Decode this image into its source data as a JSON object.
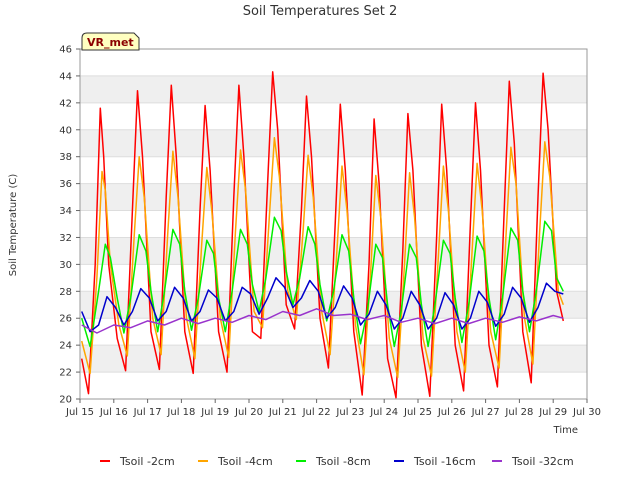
{
  "chart_data": {
    "type": "line",
    "title": "Soil Temperatures Set 2",
    "xlabel": "Time",
    "ylabel": "Soil Temperature (C)",
    "badge": "VR_met",
    "ylim": [
      20,
      46
    ],
    "yticks": [
      20,
      22,
      24,
      26,
      28,
      30,
      32,
      34,
      36,
      38,
      40,
      42,
      44,
      46
    ],
    "xlim": [
      15,
      30
    ],
    "xticks": [
      15,
      16,
      17,
      18,
      19,
      20,
      21,
      22,
      23,
      24,
      25,
      26,
      27,
      28,
      29,
      30
    ],
    "xtick_labels": [
      "Jul 15",
      "Jul 16",
      "Jul 17",
      "Jul 18",
      "Jul 19",
      "Jul 20",
      "Jul 21",
      "Jul 22",
      "Jul 23",
      "Jul 24",
      "Jul 25",
      "Jul 26",
      "Jul 27",
      "Jul 28",
      "Jul 29",
      "Jul 30"
    ],
    "grid": true,
    "legend_position": "bottom",
    "series": [
      {
        "name": "Tsoil -2cm",
        "color": "#ff0000",
        "x": [
          15.05,
          15.25,
          15.45,
          15.6,
          15.7,
          15.85,
          16.1,
          16.35,
          16.55,
          16.7,
          16.85,
          17.1,
          17.35,
          17.55,
          17.7,
          17.85,
          18.1,
          18.35,
          18.55,
          18.7,
          18.85,
          19.1,
          19.35,
          19.55,
          19.7,
          19.85,
          20.1,
          20.35,
          20.55,
          20.7,
          20.85,
          21.1,
          21.35,
          21.55,
          21.7,
          21.85,
          22.1,
          22.35,
          22.55,
          22.7,
          22.85,
          23.1,
          23.35,
          23.55,
          23.7,
          23.85,
          24.1,
          24.35,
          24.55,
          24.7,
          24.85,
          25.1,
          25.35,
          25.55,
          25.7,
          25.85,
          26.1,
          26.35,
          26.55,
          26.7,
          26.85,
          27.1,
          27.35,
          27.55,
          27.7,
          27.85,
          28.1,
          28.35,
          28.55,
          28.7,
          28.85,
          29.1,
          29.3
        ],
        "y": [
          23.0,
          20.4,
          30.0,
          41.6,
          38.0,
          30.0,
          24.5,
          22.1,
          34.0,
          42.9,
          38.0,
          25.0,
          22.2,
          35.0,
          43.3,
          38.0,
          25.0,
          21.9,
          34.0,
          41.8,
          37.0,
          25.0,
          22.0,
          35.0,
          43.3,
          38.0,
          25.0,
          24.5,
          36.0,
          44.3,
          40.0,
          27.0,
          25.2,
          34.0,
          42.5,
          38.0,
          26.0,
          22.3,
          33.0,
          41.9,
          37.0,
          25.0,
          20.3,
          30.0,
          40.8,
          36.0,
          23.0,
          20.1,
          31.0,
          41.2,
          37.0,
          24.0,
          20.2,
          32.0,
          41.9,
          37.0,
          24.0,
          20.6,
          33.0,
          42.0,
          37.0,
          24.0,
          20.9,
          34.0,
          43.6,
          39.0,
          25.0,
          21.2,
          35.0,
          44.2,
          40.0,
          28.0,
          25.8
        ]
      },
      {
        "name": "Tsoil -4cm",
        "color": "#ffa500",
        "x": [
          15.05,
          15.3,
          15.5,
          15.65,
          15.75,
          15.9,
          16.15,
          16.4,
          16.6,
          16.75,
          16.9,
          17.15,
          17.4,
          17.6,
          17.75,
          17.9,
          18.15,
          18.4,
          18.6,
          18.75,
          18.9,
          19.15,
          19.4,
          19.6,
          19.75,
          19.9,
          20.15,
          20.4,
          20.6,
          20.75,
          20.9,
          21.15,
          21.4,
          21.6,
          21.75,
          21.9,
          22.15,
          22.4,
          22.6,
          22.75,
          22.9,
          23.15,
          23.4,
          23.6,
          23.75,
          23.9,
          24.15,
          24.4,
          24.6,
          24.75,
          24.9,
          25.15,
          25.4,
          25.6,
          25.75,
          25.9,
          26.15,
          26.4,
          26.6,
          26.75,
          26.9,
          27.15,
          27.4,
          27.6,
          27.75,
          27.9,
          28.15,
          28.4,
          28.6,
          28.75,
          28.9,
          29.15,
          29.3
        ],
        "y": [
          24.3,
          21.9,
          29.0,
          36.9,
          35.5,
          30.0,
          25.5,
          23.2,
          32.0,
          38.0,
          35.0,
          26.0,
          23.3,
          32.5,
          38.4,
          35.0,
          26.0,
          23.0,
          31.5,
          37.2,
          34.0,
          26.0,
          23.1,
          32.5,
          38.5,
          35.5,
          26.5,
          25.3,
          33.5,
          39.4,
          36.5,
          28.0,
          25.9,
          32.5,
          38.1,
          35.0,
          26.5,
          23.3,
          31.0,
          37.3,
          34.0,
          25.5,
          21.8,
          29.5,
          36.6,
          33.5,
          24.5,
          21.6,
          30.0,
          36.8,
          33.5,
          24.5,
          21.7,
          30.5,
          37.3,
          34.0,
          25.0,
          22.0,
          31.0,
          37.5,
          34.0,
          25.0,
          22.3,
          32.0,
          38.7,
          36.0,
          26.0,
          22.6,
          32.5,
          39.1,
          36.5,
          28.0,
          27.0
        ]
      },
      {
        "name": "Tsoil -8cm",
        "color": "#00ee00",
        "x": [
          15.05,
          15.3,
          15.55,
          15.75,
          15.9,
          16.1,
          16.3,
          16.5,
          16.75,
          16.95,
          17.1,
          17.3,
          17.5,
          17.75,
          17.95,
          18.1,
          18.3,
          18.5,
          18.75,
          18.95,
          19.1,
          19.3,
          19.5,
          19.75,
          19.95,
          20.1,
          20.3,
          20.5,
          20.75,
          20.95,
          21.1,
          21.3,
          21.5,
          21.75,
          21.95,
          22.1,
          22.3,
          22.5,
          22.75,
          22.95,
          23.1,
          23.3,
          23.5,
          23.75,
          23.95,
          24.1,
          24.3,
          24.5,
          24.75,
          24.95,
          25.1,
          25.3,
          25.5,
          25.75,
          25.95,
          26.1,
          26.3,
          26.5,
          26.75,
          26.95,
          27.1,
          27.3,
          27.5,
          27.75,
          27.95,
          28.1,
          28.3,
          28.5,
          28.75,
          28.95,
          29.1,
          29.3
        ],
        "y": [
          26.0,
          23.9,
          28.0,
          31.5,
          30.5,
          27.5,
          24.9,
          27.5,
          32.2,
          31.0,
          28.0,
          25.0,
          28.0,
          32.6,
          31.5,
          28.0,
          25.1,
          27.5,
          31.8,
          30.8,
          27.5,
          25.0,
          28.0,
          32.6,
          31.5,
          28.5,
          26.5,
          29.0,
          33.5,
          32.5,
          29.5,
          27.0,
          29.0,
          32.8,
          31.5,
          28.5,
          25.8,
          28.0,
          32.2,
          31.0,
          27.5,
          24.1,
          26.5,
          31.5,
          30.5,
          27.0,
          23.9,
          26.5,
          31.5,
          30.5,
          27.0,
          23.9,
          27.0,
          31.8,
          30.8,
          27.5,
          24.2,
          27.0,
          32.1,
          31.0,
          27.5,
          24.4,
          27.5,
          32.7,
          31.8,
          28.0,
          25.0,
          28.0,
          33.2,
          32.5,
          29.0,
          28.0
        ]
      },
      {
        "name": "Tsoil -16cm",
        "color": "#0000cc",
        "x": [
          15.05,
          15.3,
          15.55,
          15.8,
          16.05,
          16.3,
          16.55,
          16.8,
          17.05,
          17.3,
          17.55,
          17.8,
          18.05,
          18.3,
          18.55,
          18.8,
          19.05,
          19.3,
          19.55,
          19.8,
          20.05,
          20.3,
          20.55,
          20.8,
          21.05,
          21.3,
          21.55,
          21.8,
          22.05,
          22.3,
          22.55,
          22.8,
          23.05,
          23.3,
          23.55,
          23.8,
          24.05,
          24.3,
          24.55,
          24.8,
          25.05,
          25.3,
          25.55,
          25.8,
          26.05,
          26.3,
          26.55,
          26.8,
          27.05,
          27.3,
          27.55,
          27.8,
          28.05,
          28.3,
          28.55,
          28.8,
          29.05,
          29.3
        ],
        "y": [
          26.5,
          25.0,
          25.5,
          27.6,
          26.8,
          25.5,
          26.5,
          28.2,
          27.5,
          25.8,
          26.5,
          28.3,
          27.5,
          25.8,
          26.5,
          28.1,
          27.5,
          25.8,
          26.5,
          28.3,
          27.8,
          26.3,
          27.5,
          29.0,
          28.3,
          26.8,
          27.5,
          28.8,
          28.0,
          26.0,
          26.8,
          28.4,
          27.5,
          25.5,
          26.3,
          28.0,
          27.0,
          25.2,
          26.0,
          28.0,
          27.0,
          25.2,
          26.0,
          27.9,
          27.0,
          25.2,
          26.0,
          28.0,
          27.2,
          25.4,
          26.3,
          28.3,
          27.5,
          25.7,
          26.8,
          28.6,
          28.0,
          27.8
        ]
      },
      {
        "name": "Tsoil -32cm",
        "color": "#9933cc",
        "x": [
          15.05,
          15.5,
          16.0,
          16.5,
          17.0,
          17.5,
          18.0,
          18.5,
          19.0,
          19.5,
          20.0,
          20.5,
          21.0,
          21.5,
          22.0,
          22.5,
          23.0,
          23.5,
          24.0,
          24.5,
          25.0,
          25.5,
          26.0,
          26.5,
          27.0,
          27.5,
          28.0,
          28.5,
          29.0,
          29.3
        ],
        "y": [
          25.5,
          24.9,
          25.5,
          25.3,
          25.8,
          25.5,
          26.0,
          25.6,
          26.0,
          25.7,
          26.2,
          25.9,
          26.5,
          26.2,
          26.7,
          26.2,
          26.3,
          25.9,
          26.2,
          25.7,
          26.0,
          25.6,
          26.0,
          25.6,
          26.0,
          25.7,
          26.1,
          25.8,
          26.2,
          26.0
        ]
      }
    ]
  }
}
